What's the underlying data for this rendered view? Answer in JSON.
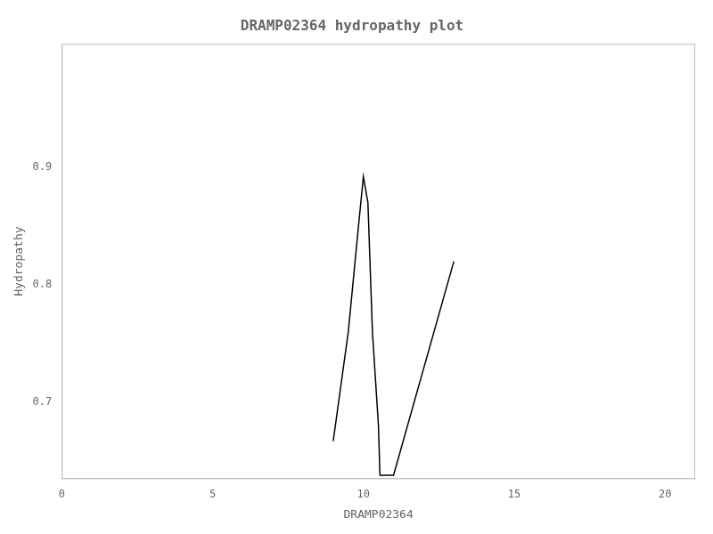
{
  "chart_data": {
    "type": "line",
    "title": "DRAMP02364 hydropathy plot",
    "xlabel": "DRAMP02364",
    "ylabel": "Hydropathy",
    "x": [
      9.0,
      9.5,
      9.8,
      10.0,
      10.15,
      10.3,
      10.5,
      10.55,
      11.0,
      13.0
    ],
    "values": [
      0.667,
      0.76,
      0.84,
      0.892,
      0.87,
      0.76,
      0.68,
      0.638,
      0.638,
      0.82
    ],
    "color": "#000000",
    "xlim": [
      0,
      21
    ],
    "ylim": [
      0.635,
      1.005
    ],
    "xticks": [
      0,
      5,
      10,
      15,
      20
    ],
    "yticks": [
      0.7,
      0.8,
      0.9
    ],
    "grid": false
  }
}
